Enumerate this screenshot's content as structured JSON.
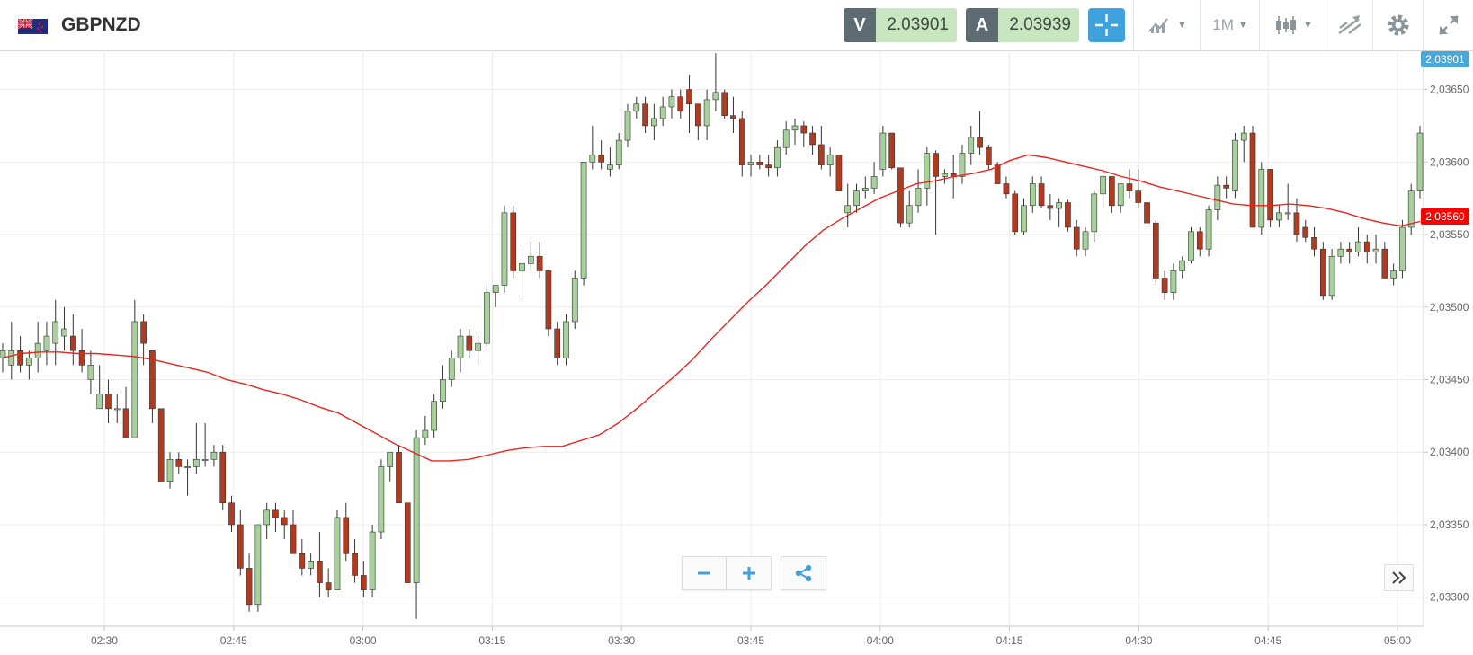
{
  "header": {
    "symbol": "GBPNZD",
    "bid_label": "V",
    "bid_value": "2.03901",
    "ask_label": "A",
    "ask_value": "2.03939",
    "timeframe": "1M"
  },
  "colors": {
    "up_fill": "#a6d19a",
    "down_fill": "#b23a1e",
    "ma_line": "#e8251f",
    "accent": "#3fa2dc",
    "current_price_tag": "#4aa8d8",
    "ma_price_tag": "#ff0000"
  },
  "icons": [
    "flag-icon",
    "crosshair-icon",
    "indicators-icon",
    "chart-type-icon",
    "drawing-tools-icon",
    "gear-icon",
    "fullscreen-icon",
    "minus-icon",
    "plus-icon",
    "share-icon",
    "double-chevron-right-icon"
  ],
  "chart_data": {
    "type": "candlestick",
    "x_ticks": [
      "02:30",
      "02:45",
      "03:00",
      "03:15",
      "03:30",
      "03:45",
      "04:00",
      "04:15",
      "04:30",
      "04:45",
      "05:00"
    ],
    "y_ticks": [
      "2,03650",
      "2,03600",
      "2,03550",
      "2,03500",
      "2,03450",
      "2,03400",
      "2,03350",
      "2,03300"
    ],
    "ylim": [
      2.0328,
      2.03677
    ],
    "current_price_label": "2,03901",
    "ma_price_label": "2,03560",
    "candles_ohlc": [
      [
        2.03465,
        2.03475,
        2.03455,
        2.0347
      ],
      [
        2.0346,
        2.0349,
        2.0345,
        2.0347
      ],
      [
        2.0347,
        2.0348,
        2.03455,
        2.0346
      ],
      [
        2.0346,
        2.0347,
        2.0345,
        2.03465
      ],
      [
        2.03465,
        2.0349,
        2.03455,
        2.03475
      ],
      [
        2.0347,
        2.0349,
        2.0346,
        2.0348
      ],
      [
        2.03475,
        2.03505,
        2.0346,
        2.0349
      ],
      [
        2.0348,
        2.035,
        2.0347,
        2.03485
      ],
      [
        2.0348,
        2.03495,
        2.0346,
        2.0347
      ],
      [
        2.0347,
        2.03485,
        2.03455,
        2.0346
      ],
      [
        2.0345,
        2.0347,
        2.0344,
        2.0346
      ],
      [
        2.0343,
        2.0346,
        2.0343,
        2.0344
      ],
      [
        2.0344,
        2.0345,
        2.0342,
        2.0343
      ],
      [
        2.0343,
        2.0344,
        2.0342,
        2.0343
      ],
      [
        2.0343,
        2.03445,
        2.0341,
        2.0341
      ],
      [
        2.0341,
        2.03505,
        2.0341,
        2.0349
      ],
      [
        2.0349,
        2.03495,
        2.0346,
        2.03475
      ],
      [
        2.0347,
        2.0347,
        2.0342,
        2.0343
      ],
      [
        2.0343,
        2.0343,
        2.0338,
        2.0338
      ],
      [
        2.0338,
        2.034,
        2.03375,
        2.03395
      ],
      [
        2.03395,
        2.034,
        2.03385,
        2.0339
      ],
      [
        2.0339,
        2.03395,
        2.0337,
        2.0339
      ],
      [
        2.0339,
        2.0342,
        2.03385,
        2.03395
      ],
      [
        2.03395,
        2.0342,
        2.0339,
        2.03395
      ],
      [
        2.03395,
        2.03405,
        2.0339,
        2.034
      ],
      [
        2.034,
        2.03405,
        2.0336,
        2.03365
      ],
      [
        2.03365,
        2.0337,
        2.03345,
        2.0335
      ],
      [
        2.0335,
        2.0336,
        2.03315,
        2.0332
      ],
      [
        2.0332,
        2.0333,
        2.0329,
        2.03295
      ],
      [
        2.03295,
        2.0335,
        2.0329,
        2.0335
      ],
      [
        2.0335,
        2.03365,
        2.0334,
        2.0336
      ],
      [
        2.0336,
        2.03365,
        2.03345,
        2.03355
      ],
      [
        2.03355,
        2.0336,
        2.0334,
        2.0335
      ],
      [
        2.0335,
        2.0336,
        2.0333,
        2.0333
      ],
      [
        2.0333,
        2.0334,
        2.03315,
        2.0332
      ],
      [
        2.0332,
        2.0333,
        2.03315,
        2.03325
      ],
      [
        2.03325,
        2.03345,
        2.033,
        2.0331
      ],
      [
        2.0331,
        2.0332,
        2.033,
        2.03305
      ],
      [
        2.03305,
        2.0336,
        2.03305,
        2.03355
      ],
      [
        2.03355,
        2.03365,
        2.03325,
        2.0333
      ],
      [
        2.0333,
        2.0334,
        2.0331,
        2.03315
      ],
      [
        2.03315,
        2.03325,
        2.033,
        2.03305
      ],
      [
        2.03305,
        2.0335,
        2.033,
        2.03345
      ],
      [
        2.03345,
        2.03395,
        2.0334,
        2.0339
      ],
      [
        2.0339,
        2.034,
        2.0338,
        2.034
      ],
      [
        2.034,
        2.03405,
        2.03365,
        2.03365
      ],
      [
        2.03365,
        2.03365,
        2.0331,
        2.0331
      ],
      [
        2.0331,
        2.03415,
        2.03285,
        2.0341
      ],
      [
        2.0341,
        2.03425,
        2.03405,
        2.03415
      ],
      [
        2.03415,
        2.0344,
        2.0341,
        2.03435
      ],
      [
        2.03435,
        2.0346,
        2.0343,
        2.0345
      ],
      [
        2.0345,
        2.0347,
        2.03445,
        2.03465
      ],
      [
        2.03465,
        2.03485,
        2.03455,
        2.0348
      ],
      [
        2.0348,
        2.03485,
        2.03465,
        2.0347
      ],
      [
        2.0347,
        2.0348,
        2.0346,
        2.03475
      ],
      [
        2.03475,
        2.03515,
        2.0347,
        2.0351
      ],
      [
        2.0351,
        2.03515,
        2.035,
        2.03515
      ],
      [
        2.03515,
        2.0357,
        2.0351,
        2.03565
      ],
      [
        2.03565,
        2.0357,
        2.0352,
        2.03525
      ],
      [
        2.03525,
        2.0354,
        2.03505,
        2.0353
      ],
      [
        2.0353,
        2.03545,
        2.03525,
        2.03535
      ],
      [
        2.03535,
        2.03545,
        2.0352,
        2.03525
      ],
      [
        2.03525,
        2.03525,
        2.0348,
        2.03485
      ],
      [
        2.03485,
        2.0349,
        2.0346,
        2.03465
      ],
      [
        2.03465,
        2.03495,
        2.0346,
        2.0349
      ],
      [
        2.0349,
        2.03525,
        2.03485,
        2.0352
      ],
      [
        2.0352,
        2.036,
        2.03515,
        2.036
      ],
      [
        2.036,
        2.03625,
        2.03595,
        2.03605
      ],
      [
        2.03605,
        2.03615,
        2.03595,
        2.036
      ],
      [
        2.03595,
        2.0361,
        2.0359,
        2.03598
      ],
      [
        2.03598,
        2.0362,
        2.03595,
        2.03615
      ],
      [
        2.03615,
        2.0364,
        2.0361,
        2.03635
      ],
      [
        2.03635,
        2.03645,
        2.0363,
        2.0364
      ],
      [
        2.0364,
        2.03645,
        2.0362,
        2.03625
      ],
      [
        2.03625,
        2.0364,
        2.03615,
        2.0363
      ],
      [
        2.0363,
        2.03645,
        2.03625,
        2.03638
      ],
      [
        2.03638,
        2.0365,
        2.0363,
        2.03645
      ],
      [
        2.03645,
        2.0365,
        2.0363,
        2.03635
      ],
      [
        2.0365,
        2.0366,
        2.0362,
        2.0364
      ],
      [
        2.0364,
        2.0364,
        2.03615,
        2.03625
      ],
      [
        2.03625,
        2.0365,
        2.03615,
        2.03643
      ],
      [
        2.03643,
        2.03675,
        2.03635,
        2.03648
      ],
      [
        2.03648,
        2.0365,
        2.0363,
        2.03632
      ],
      [
        2.03632,
        2.03645,
        2.0362,
        2.0363
      ],
      [
        2.0363,
        2.03635,
        2.0359,
        2.03598
      ],
      [
        2.03598,
        2.03605,
        2.0359,
        2.036
      ],
      [
        2.036,
        2.03605,
        2.03595,
        2.03598
      ],
      [
        2.03598,
        2.03605,
        2.0359,
        2.03596
      ],
      [
        2.03596,
        2.03615,
        2.0359,
        2.0361
      ],
      [
        2.0361,
        2.03628,
        2.03605,
        2.03622
      ],
      [
        2.03622,
        2.0363,
        2.03612,
        2.03625
      ],
      [
        2.03625,
        2.03628,
        2.0361,
        2.0362
      ],
      [
        2.0362,
        2.03625,
        2.03605,
        2.03612
      ],
      [
        2.03612,
        2.03625,
        2.03595,
        2.03598
      ],
      [
        2.03598,
        2.0361,
        2.0359,
        2.03605
      ],
      [
        2.03605,
        2.03605,
        2.0358,
        2.0358
      ],
      [
        2.03565,
        2.03585,
        2.03555,
        2.0357
      ],
      [
        2.0357,
        2.03585,
        2.03565,
        2.0358
      ],
      [
        2.0358,
        2.0359,
        2.03575,
        2.03582
      ],
      [
        2.03582,
        2.036,
        2.03578,
        2.0359
      ],
      [
        2.03595,
        2.03625,
        2.0359,
        2.0362
      ],
      [
        2.0362,
        2.0362,
        2.03595,
        2.03596
      ],
      [
        2.03596,
        2.03596,
        2.03555,
        2.03558
      ],
      [
        2.03558,
        2.0358,
        2.03555,
        2.0357
      ],
      [
        2.0357,
        2.03595,
        2.03565,
        2.03582
      ],
      [
        2.03582,
        2.0361,
        2.0357,
        2.03606
      ],
      [
        2.03606,
        2.03608,
        2.0355,
        2.0359
      ],
      [
        2.0359,
        2.03595,
        2.03585,
        2.03592
      ],
      [
        2.03592,
        2.03605,
        2.03575,
        2.0359
      ],
      [
        2.0359,
        2.03612,
        2.03585,
        2.03606
      ],
      [
        2.03606,
        2.03625,
        2.03598,
        2.03617
      ],
      [
        2.03617,
        2.03635,
        2.03605,
        2.0361
      ],
      [
        2.0361,
        2.03612,
        2.03595,
        2.03598
      ],
      [
        2.03598,
        2.036,
        2.03585,
        2.03585
      ],
      [
        2.03585,
        2.0359,
        2.03575,
        2.03578
      ],
      [
        2.03578,
        2.0358,
        2.0355,
        2.03552
      ],
      [
        2.03552,
        2.03575,
        2.0355,
        2.0357
      ],
      [
        2.0357,
        2.0359,
        2.03565,
        2.03585
      ],
      [
        2.03585,
        2.0359,
        2.03568,
        2.0357
      ],
      [
        2.0357,
        2.03578,
        2.0356,
        2.03568
      ],
      [
        2.03568,
        2.03575,
        2.03555,
        2.03572
      ],
      [
        2.03572,
        2.03574,
        2.03552,
        2.03555
      ],
      [
        2.03555,
        2.0356,
        2.03535,
        2.0354
      ],
      [
        2.0354,
        2.03555,
        2.03535,
        2.03552
      ],
      [
        2.03552,
        2.0358,
        2.03545,
        2.03578
      ],
      [
        2.03578,
        2.03595,
        2.03568,
        2.0359
      ],
      [
        2.0359,
        2.0359,
        2.03565,
        2.0357
      ],
      [
        2.0357,
        2.03585,
        2.03565,
        2.03585
      ],
      [
        2.03585,
        2.03595,
        2.03575,
        2.0358
      ],
      [
        2.0358,
        2.03595,
        2.03568,
        2.03572
      ],
      [
        2.03572,
        2.03572,
        2.03555,
        2.03558
      ],
      [
        2.03558,
        2.0356,
        2.03515,
        2.0352
      ],
      [
        2.0352,
        2.03525,
        2.03505,
        2.0351
      ],
      [
        2.0351,
        2.0353,
        2.03505,
        2.03525
      ],
      [
        2.03525,
        2.03535,
        2.0352,
        2.03532
      ],
      [
        2.03532,
        2.03555,
        2.0353,
        2.03552
      ],
      [
        2.03552,
        2.03555,
        2.03535,
        2.0354
      ],
      [
        2.0354,
        2.0357,
        2.03535,
        2.03567
      ],
      [
        2.03567,
        2.0359,
        2.0356,
        2.03584
      ],
      [
        2.03584,
        2.0359,
        2.03575,
        2.03582
      ],
      [
        2.0358,
        2.0362,
        2.03575,
        2.03615
      ],
      [
        2.03615,
        2.03625,
        2.036,
        2.0362
      ],
      [
        2.0362,
        2.03625,
        2.03555,
        2.03555
      ],
      [
        2.03555,
        2.036,
        2.0355,
        2.03595
      ],
      [
        2.03595,
        2.03595,
        2.03555,
        2.0356
      ],
      [
        2.0356,
        2.0357,
        2.03555,
        2.03565
      ],
      [
        2.03565,
        2.03585,
        2.0356,
        2.03565
      ],
      [
        2.03565,
        2.03575,
        2.03545,
        2.0355
      ],
      [
        2.03555,
        2.0356,
        2.03545,
        2.03548
      ],
      [
        2.03548,
        2.03555,
        2.03535,
        2.0354
      ],
      [
        2.0354,
        2.03545,
        2.03505,
        2.03508
      ],
      [
        2.03508,
        2.0354,
        2.03505,
        2.03535
      ],
      [
        2.03535,
        2.03545,
        2.0353,
        2.0354
      ],
      [
        2.0354,
        2.03545,
        2.0353,
        2.03538
      ],
      [
        2.03538,
        2.03555,
        2.03535,
        2.03545
      ],
      [
        2.03545,
        2.0355,
        2.0353,
        2.03538
      ],
      [
        2.03538,
        2.0355,
        2.0353,
        2.0354
      ],
      [
        2.0354,
        2.03545,
        2.0352,
        2.0352
      ],
      [
        2.0352,
        2.0353,
        2.03515,
        2.03525
      ],
      [
        2.03525,
        2.0356,
        2.0352,
        2.03555
      ],
      [
        2.03555,
        2.03585,
        2.0355,
        2.0358
      ],
      [
        2.0358,
        2.03625,
        2.03575,
        2.0362
      ]
    ],
    "ma_series": [
      2.03465,
      2.03468,
      2.03469,
      2.03469,
      2.03468,
      2.03468,
      2.03467,
      2.03466,
      2.03464,
      2.03461,
      2.03458,
      2.03455,
      2.0345,
      2.03447,
      2.03443,
      2.0344,
      2.03436,
      2.03431,
      2.03427,
      2.0342,
      2.03413,
      2.03406,
      2.034,
      2.03394,
      2.03394,
      2.03395,
      2.03398,
      2.03401,
      2.03403,
      2.03404,
      2.03404,
      2.03408,
      2.03412,
      2.0342,
      2.0343,
      2.03441,
      2.03452,
      2.03464,
      2.03478,
      2.03491,
      2.03504,
      2.03516,
      2.03529,
      2.03542,
      2.03553,
      2.03561,
      2.03568,
      2.03575,
      2.0358,
      2.03585,
      2.03587,
      2.0359,
      2.03592,
      2.03595,
      2.03601,
      2.03605,
      2.03603,
      2.036,
      2.03597,
      2.03594,
      2.0359,
      2.03587,
      2.03583,
      2.0358,
      2.03577,
      2.03574,
      2.03571,
      2.0357,
      2.0357,
      2.03571,
      2.0357,
      2.03568,
      2.03565,
      2.03561,
      2.03558,
      2.03556,
      2.03559
    ]
  }
}
